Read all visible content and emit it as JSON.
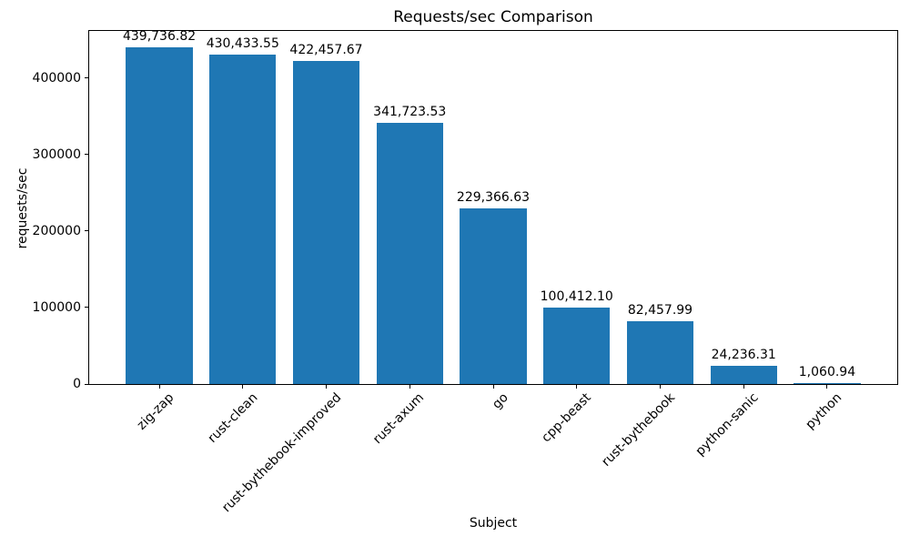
{
  "chart_data": {
    "type": "bar",
    "title": "Requests/sec Comparison",
    "xlabel": "Subject",
    "ylabel": "requests/sec",
    "categories": [
      "zig-zap",
      "rust-clean",
      "rust-bythebook-improved",
      "rust-axum",
      "go",
      "cpp-beast",
      "rust-bythebook",
      "python-sanic",
      "python"
    ],
    "values": [
      439736.82,
      430433.55,
      422457.67,
      341723.53,
      229366.63,
      100412.1,
      82457.99,
      24236.31,
      1060.94
    ],
    "value_labels": [
      "439,736.82",
      "430,433.55",
      "422,457.67",
      "341,723.53",
      "229,366.63",
      "100,412.10",
      "82,457.99",
      "24,236.31",
      "1,060.94"
    ],
    "yticks": [
      0,
      100000,
      200000,
      300000,
      400000
    ],
    "ytick_labels": [
      "0",
      "100000",
      "200000",
      "300000",
      "400000"
    ],
    "ylim": [
      0,
      461723.66
    ],
    "bar_color": "#1f77b4",
    "spine_color": "#000000",
    "background_color": "#ffffff",
    "grid": false,
    "legend": null
  }
}
